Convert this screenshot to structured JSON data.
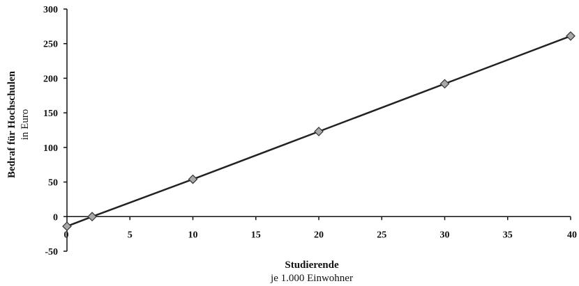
{
  "chart_data": {
    "type": "line",
    "title": "",
    "xlabel": "Studierende",
    "xlabel_sub": "je 1.000 Einwohner",
    "ylabel": "Bedraf für Hochschulen",
    "ylabel_sub": "in Euro",
    "xlim": [
      0,
      40
    ],
    "ylim": [
      -50,
      300
    ],
    "x_ticks": [
      5,
      10,
      15,
      20,
      25,
      30,
      35,
      40
    ],
    "y_ticks": [
      -50,
      0,
      50,
      100,
      150,
      200,
      250,
      300
    ],
    "x_tick_labels": [
      "5",
      "10",
      "15",
      "20",
      "25",
      "30",
      "35",
      "40"
    ],
    "y_tick_labels": [
      "-50",
      "0",
      "50",
      "100",
      "150",
      "200",
      "250",
      "300"
    ],
    "x_origin_label": "0",
    "grid": false,
    "legend": "none",
    "series": [
      {
        "x": [
          0,
          2,
          10,
          20,
          30,
          40
        ],
        "y": [
          -14,
          0,
          54,
          123,
          192,
          261
        ],
        "color": "#222222",
        "marker": "diamond",
        "marker_color": "#a8a8a8"
      }
    ]
  }
}
